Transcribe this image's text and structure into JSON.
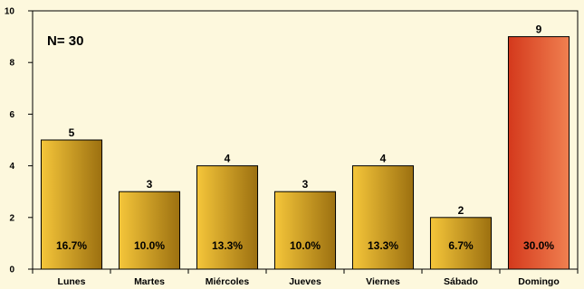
{
  "chart_data": {
    "type": "bar",
    "categories": [
      "Lunes",
      "Martes",
      "Miércoles",
      "Jueves",
      "Viernes",
      "Sábado",
      "Domingo"
    ],
    "values": [
      5,
      3,
      4,
      3,
      4,
      2,
      9
    ],
    "percent_labels": [
      "16.7%",
      "10.0%",
      "13.3%",
      "10.0%",
      "13.3%",
      "6.7%",
      "30.0%"
    ],
    "annotation": "N= 30",
    "ylim": [
      0,
      10
    ],
    "yticks": [
      0,
      2,
      4,
      6,
      8,
      10
    ],
    "grid": false,
    "highlight_index": 6,
    "colors": {
      "bar_light": "#f5c63a",
      "bar_dark": "#9c7010",
      "highlight_light": "#f08050",
      "highlight_dark": "#d4391c",
      "plot_background": "#fdf8dd"
    }
  }
}
